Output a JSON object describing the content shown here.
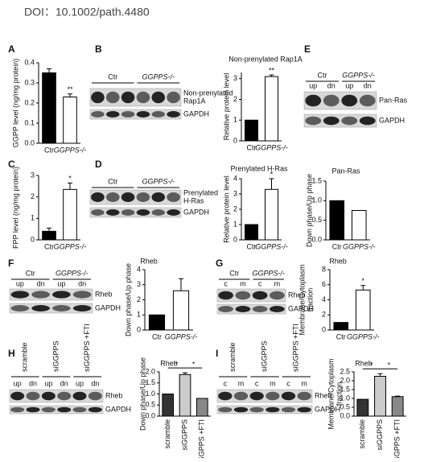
{
  "doi": "DOI：10.1002/path.4480",
  "panel_labels": [
    "A",
    "B",
    "C",
    "D",
    "E",
    "F",
    "G",
    "H",
    "I"
  ],
  "blots": [
    {
      "groups": [
        "Ctr",
        "GGPPS-/-"
      ],
      "lanes": [],
      "rows": [
        [
          "Non-prenylated",
          "Rap1A"
        ],
        [
          "GAPDH"
        ]
      ]
    },
    {
      "groups": [
        "Ctr",
        "GGPPS-/-"
      ],
      "lanes": [],
      "rows": [
        [
          "Prenylated",
          "H-Ras"
        ],
        [
          "GAPDH"
        ]
      ]
    },
    {
      "groups": [
        "Ctr",
        "GGPPS-/-"
      ],
      "lanes": [
        "up",
        "dn",
        "up",
        "dn"
      ],
      "rows": [
        [
          "Pan-Ras"
        ],
        [
          "GAPDH"
        ]
      ]
    },
    {
      "groups": [
        "Ctr",
        "GGPPS-/-"
      ],
      "lanes": [
        "up",
        "dn",
        "up",
        "dn"
      ],
      "rows": [
        [
          "Rheb"
        ],
        [
          "GAPDH"
        ]
      ]
    },
    {
      "groups": [
        "Ctr",
        "GGPPS-/-"
      ],
      "lanes": [
        "c",
        "m",
        "c",
        "m"
      ],
      "rows": [
        [
          "Rheb"
        ],
        [
          "GAPDH"
        ]
      ]
    },
    {
      "groups": [
        "scramble",
        "siGGPPS",
        "siGGPPS +FTI"
      ],
      "lanes": [
        "up",
        "dn",
        "up",
        "dn",
        "up",
        "dn"
      ],
      "rows": [
        [
          "Rheb"
        ],
        [
          "GAPDH"
        ]
      ]
    },
    {
      "groups": [
        "scramble",
        "siGGPPS",
        "siGGPPS +FTI"
      ],
      "lanes": [
        "c",
        "m",
        "c",
        "m",
        "c",
        "m"
      ],
      "rows": [
        [
          "Rheb"
        ],
        [
          "GAPDH"
        ]
      ]
    }
  ],
  "chart_data": [
    {
      "type": "bar",
      "y_label": [
        "GGPP level (ng/mg protein)"
      ],
      "categories": [
        "Ctr",
        "GGPPS-/-"
      ],
      "values": [
        0.35,
        0.23
      ],
      "errors": [
        0.02,
        0.015
      ],
      "colors": [
        "#000000",
        "#ffffff"
      ],
      "annotations": [
        null,
        "**"
      ],
      "ylim": [
        0,
        0.4
      ],
      "yticks": [
        {
          "value": 0,
          "label": "0.0"
        },
        0.1,
        0.2,
        0.3,
        0.4
      ]
    },
    {
      "type": "bar",
      "title": "Non-prenylated Rap1A",
      "y_label": [
        "Relative protein level"
      ],
      "categories": [
        "Ctr",
        "GGPPS-/-"
      ],
      "values": [
        1,
        3.1
      ],
      "errors": [
        null,
        0.08
      ],
      "colors": [
        "#000000",
        "#ffffff"
      ],
      "annotations": [
        null,
        "**"
      ],
      "ylim": [
        0,
        3.3
      ],
      "yticks": [
        0,
        1,
        2,
        3
      ]
    },
    {
      "type": "bar",
      "y_label": [
        "FPP level (ng/mg protein)"
      ],
      "categories": [
        "Ctr",
        "GGPPS-/-"
      ],
      "values": [
        0.4,
        2.35
      ],
      "errors": [
        0.15,
        0.3
      ],
      "colors": [
        "#000000",
        "#ffffff"
      ],
      "annotations": [
        null,
        "*"
      ],
      "ylim": [
        0,
        3
      ],
      "yticks": [
        0,
        1,
        2,
        3
      ]
    },
    {
      "type": "bar",
      "title": "Prenylated H-Ras",
      "y_label": [
        "Relative protein level"
      ],
      "categories": [
        "Ctr",
        "GGPPS-/-"
      ],
      "values": [
        1,
        3.3
      ],
      "errors": [
        null,
        0.7
      ],
      "colors": [
        "#000000",
        "#ffffff"
      ],
      "annotations": [
        null,
        "*"
      ],
      "ylim": [
        0,
        4
      ],
      "yticks": [
        0,
        1,
        2,
        3,
        4
      ]
    },
    {
      "type": "bar",
      "title": "Pan-Ras",
      "y_label": [
        "Down phase/Up phase"
      ],
      "categories": [
        "Ctr",
        "GGPPS-/-"
      ],
      "values": [
        1.0,
        0.75
      ],
      "errors": [
        null,
        null
      ],
      "colors": [
        "#000000",
        "#ffffff"
      ],
      "annotations": [
        null,
        null
      ],
      "ylim": [
        0,
        1.5
      ],
      "yticks": [
        {
          "value": 0,
          "label": "0.0"
        },
        0.5,
        {
          "value": 1,
          "label": "1.0"
        },
        1.5
      ]
    },
    {
      "type": "bar",
      "title": "Rheb",
      "y_label": [
        "Down phase/Up phase"
      ],
      "categories": [
        "Ctr",
        "GGPPS-/-"
      ],
      "values": [
        1,
        2.6
      ],
      "errors": [
        null,
        0.8
      ],
      "colors": [
        "#000000",
        "#ffffff"
      ],
      "annotations": [
        null,
        null
      ],
      "ylim": [
        0,
        4
      ],
      "yticks": [
        0,
        1,
        2,
        3,
        4
      ]
    },
    {
      "type": "bar",
      "title": "Rheb",
      "y_label": [
        "Membrane/Cytoplasm",
        "fraction"
      ],
      "categories": [
        "Ctr",
        "GGPPS-/-"
      ],
      "values": [
        1,
        5.3
      ],
      "errors": [
        null,
        0.6
      ],
      "colors": [
        "#000000",
        "#ffffff"
      ],
      "annotations": [
        null,
        "*"
      ],
      "ylim": [
        0,
        8
      ],
      "yticks": [
        0,
        2,
        4,
        6,
        8
      ]
    },
    {
      "type": "bar",
      "title": "Rheb",
      "y_label": [
        "Down phase/Up phase"
      ],
      "categories": [
        "scramble",
        "siGGPPS",
        "siGGPPS +FTI"
      ],
      "values": [
        1.0,
        1.88,
        0.8
      ],
      "errors": [
        null,
        0.08,
        null
      ],
      "colors": [
        "#333333",
        "#cccccc",
        "#888888"
      ],
      "significance": [
        "*",
        "*"
      ],
      "ylim": [
        0,
        2.0
      ],
      "yticks": [
        {
          "value": 0,
          "label": "0.0"
        },
        0.5,
        {
          "value": 1,
          "label": "1.0"
        },
        1.5,
        {
          "value": 2,
          "label": "2.0"
        }
      ]
    },
    {
      "type": "bar",
      "title": "Rheb",
      "y_label": [
        "Membrane/Cytoplasm",
        "fraction"
      ],
      "categories": [
        "scramble",
        "siGGPPS",
        "siGGPPS +FTI"
      ],
      "values": [
        0.95,
        2.25,
        1.1
      ],
      "errors": [
        null,
        0.15,
        0.03
      ],
      "colors": [
        "#333333",
        "#cccccc",
        "#888888"
      ],
      "significance": [
        "*",
        "*"
      ],
      "ylim": [
        0,
        2.5
      ],
      "yticks": [
        {
          "value": 0,
          "label": "0.0"
        },
        0.5,
        {
          "value": 1,
          "label": "1.0"
        },
        1.5,
        {
          "value": 2,
          "label": "2.0"
        },
        2.5
      ]
    }
  ]
}
